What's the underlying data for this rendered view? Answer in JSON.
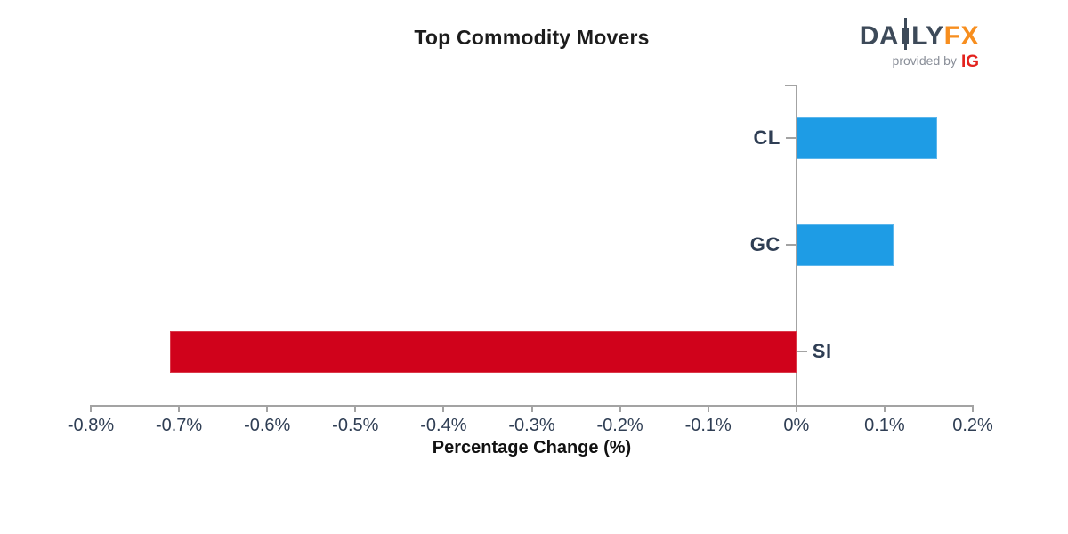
{
  "logo": {
    "daily_prefix": "DA",
    "daily_suffix": "LY",
    "fx": "FX",
    "provided_by": "provided by",
    "ig": "IG"
  },
  "chart_data": {
    "type": "bar",
    "orientation": "horizontal",
    "title": "Top Commodity Movers",
    "xlabel": "Percentage Change (%)",
    "categories": [
      "CL",
      "GC",
      "SI"
    ],
    "values": [
      0.16,
      0.11,
      -0.71
    ],
    "value_unit": "%",
    "xlim": [
      -0.8,
      0.2
    ],
    "xtick_step": 0.1,
    "xtick_labels": [
      "-0.8%",
      "-0.7%",
      "-0.6%",
      "-0.5%",
      "-0.4%",
      "-0.3%",
      "-0.2%",
      "-0.1%",
      "0%",
      "0.1%",
      "0.2%"
    ],
    "grid": false,
    "legend": null,
    "positive_color": "#1e9ce5",
    "negative_color": "#d0021b",
    "axis_color": "#a3a3a3",
    "tick_label_color": "#2f3e54"
  }
}
